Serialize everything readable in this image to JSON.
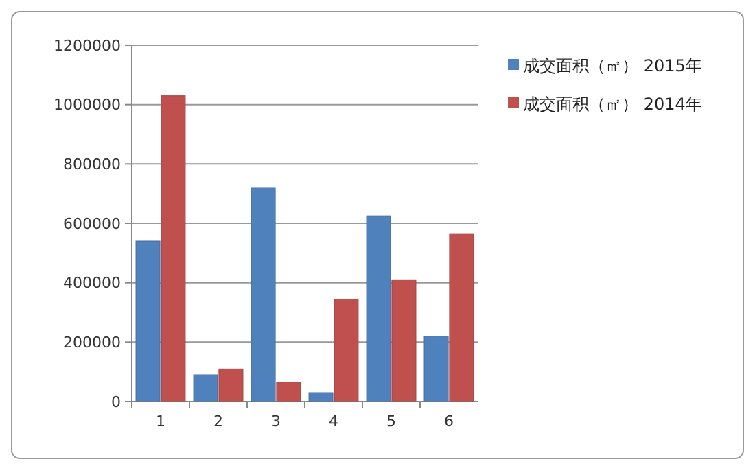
{
  "chart_data": {
    "type": "bar",
    "categories": [
      "1",
      "2",
      "3",
      "4",
      "5",
      "6"
    ],
    "series": [
      {
        "name": "成交面积（㎡） 2015年",
        "color": "#4f81bd",
        "values": [
          540000,
          90000,
          720000,
          30000,
          625000,
          220000
        ]
      },
      {
        "name": "成交面积（㎡） 2014年",
        "color": "#c0504d",
        "values": [
          1030000,
          110000,
          65000,
          345000,
          410000,
          565000
        ]
      }
    ],
    "ylim": [
      0,
      1200000
    ],
    "yticks": [
      0,
      200000,
      400000,
      600000,
      800000,
      1000000,
      1200000
    ],
    "grid": "y",
    "legend": "top right"
  }
}
